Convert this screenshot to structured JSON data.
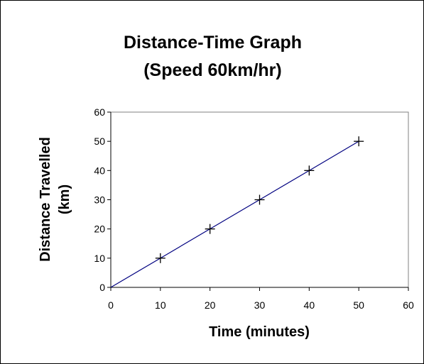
{
  "chart_data": {
    "type": "line",
    "title": "Distance-Time Graph",
    "subtitle": "(Speed 60km/hr)",
    "xlabel": "Time (minutes)",
    "ylabel_lines": [
      "Distance Travelled",
      "(km)"
    ],
    "xlim": [
      0,
      60
    ],
    "ylim": [
      0,
      60
    ],
    "xticks": [
      0,
      10,
      20,
      30,
      40,
      50,
      60
    ],
    "yticks": [
      0,
      10,
      20,
      30,
      40,
      50,
      60
    ],
    "grid": false,
    "series": [
      {
        "x": [
          0,
          10,
          20,
          30,
          40,
          50
        ],
        "y": [
          0,
          10,
          20,
          30,
          40,
          50
        ],
        "line_color": "#000080",
        "marker": "plus",
        "marker_color": "#000000",
        "markers_on": [
          10,
          20,
          30,
          40,
          50
        ]
      }
    ]
  }
}
